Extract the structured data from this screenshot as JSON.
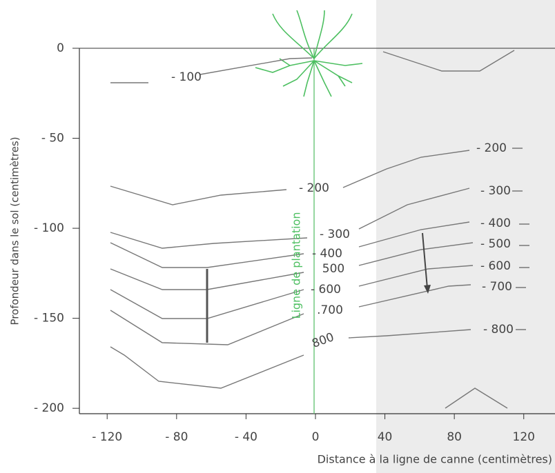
{
  "chart_data": {
    "type": "contour",
    "x_label": "Distance à la ligne de canne (centimètres)",
    "y_label": "Profondeur dans le sol (centimètres)",
    "planting_line_label": "Ligne de plantation",
    "xlim": [
      -136,
      138
    ],
    "xticks": [
      {
        "value": -120,
        "label": "- 120"
      },
      {
        "value": -80,
        "label": "- 80"
      },
      {
        "value": -40,
        "label": "- 40"
      },
      0,
      40,
      80,
      120
    ],
    "ylim": [
      -203,
      0
    ],
    "yticks": [
      0,
      {
        "value": -50,
        "label": "- 50"
      },
      {
        "value": -100,
        "label": "- 100"
      },
      {
        "value": -150,
        "label": "- 150"
      },
      {
        "value": -200,
        "label": "- 200"
      }
    ],
    "contour_labels": [
      "- 100",
      "- 200",
      "- 200",
      "- 300",
      "- 300",
      "- 400",
      "- 400",
      "500",
      "- 500",
      "- 600",
      "- 600",
      ".700",
      "- 700",
      "800",
      "- 800"
    ]
  }
}
